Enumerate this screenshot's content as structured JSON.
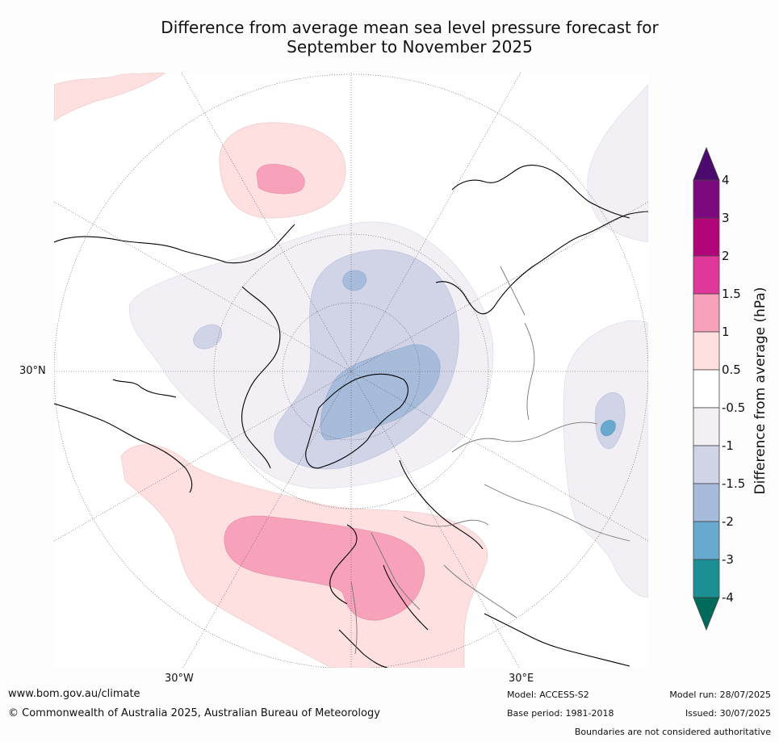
{
  "title_line1": "Difference from average mean sea level pressure forecast for",
  "title_line2": "September to November 2025",
  "map": {
    "projection": "north-polar-stereographic",
    "lat_labels": [
      "30°N"
    ],
    "lon_labels": [
      "30°W",
      "30°E"
    ]
  },
  "colorbar": {
    "label": "Difference from average (hPa)",
    "ticks": [
      "4",
      "3",
      "2",
      "1.5",
      "1",
      "0.5",
      "-0.5",
      "-1",
      "-1.5",
      "-2",
      "-3",
      "-4"
    ],
    "colors": {
      "above_4": "#4b0a6e",
      "3_to_4": "#7c0a7e",
      "2_to_3": "#b3057a",
      "1.5_to_2": "#e0389a",
      "1_to_1.5": "#f7a1bb",
      "0.5_to_1": "#fde0df",
      "-0.5_to_0.5": "#ffffff",
      "-1_to_-0.5": "#f2eff5",
      "-1.5_to_-1": "#d1d3e6",
      "-2_to_-1.5": "#a6bcda",
      "-3_to_-2": "#67a9cf",
      "-4_to_-3": "#1c8f94",
      "below_-4": "#006b5a"
    }
  },
  "footer": {
    "website": "www.bom.gov.au/climate",
    "copyright": "© Commonwealth of Australia 2025, Australian Bureau of Meteorology",
    "model": "Model: ACCESS-S2",
    "base_period": "Base period: 1981-2018",
    "model_run": "Model run: 28/07/2025",
    "issued": "Issued: 30/07/2025",
    "boundaries": "Boundaries are not considered authoritative"
  }
}
